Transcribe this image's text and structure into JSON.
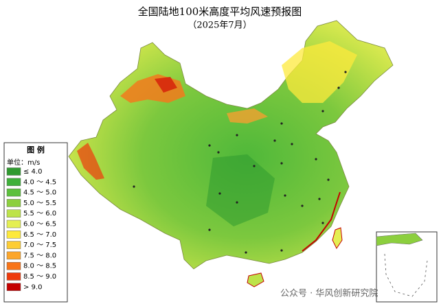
{
  "title": "全国陆地100米高度平均风速预报图",
  "subtitle": "（2025年7月）",
  "legend": {
    "title": "图  例",
    "unit": "单位：m/s",
    "items": [
      {
        "label": "≤ 4.0",
        "color": "#2f9a2f"
      },
      {
        "label": "4.0 ～ 4.5",
        "color": "#3fb03a"
      },
      {
        "label": "4.5 ～ 5.0",
        "color": "#5cc03c"
      },
      {
        "label": "5.0 ～ 5.5",
        "color": "#8ccf3e"
      },
      {
        "label": "5.5 ～ 6.0",
        "color": "#bde34a"
      },
      {
        "label": "6.0 ～ 6.5",
        "color": "#e4ef52"
      },
      {
        "label": "6.5 ～ 7.0",
        "color": "#fde93c"
      },
      {
        "label": "7.0 ～ 7.5",
        "color": "#fdcd34"
      },
      {
        "label": "7.5 ～ 8.0",
        "color": "#fca62a"
      },
      {
        "label": "8.0 ～ 8.5",
        "color": "#f87418"
      },
      {
        "label": "8.5 ～ 9.0",
        "color": "#ee3a0c"
      },
      {
        "label": "> 9.0",
        "color": "#c40000"
      }
    ]
  },
  "watermark": "公众号 · 华风创新研究院"
}
